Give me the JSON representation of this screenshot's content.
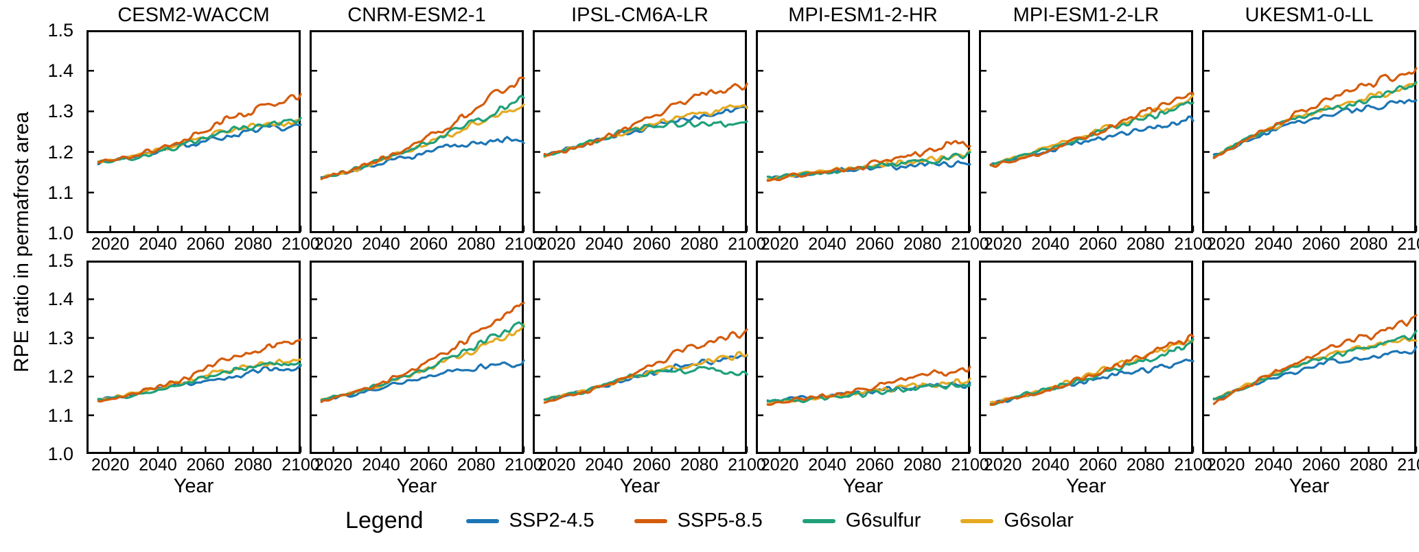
{
  "figure": {
    "ylabel": "RPE ratio in permafrost area",
    "xlabel": "Year"
  },
  "legend": {
    "title": "Legend",
    "items": [
      {
        "label": "SSP2-4.5",
        "color": "#1c75b4"
      },
      {
        "label": "SSP5-8.5",
        "color": "#d45c0c"
      },
      {
        "label": "G6sulfur",
        "color": "#1fa07a"
      },
      {
        "label": "G6solar",
        "color": "#e5a922"
      }
    ]
  },
  "chart_data": {
    "type": "line",
    "title": "",
    "xlabel": "Year",
    "ylabel": "RPE ratio in permafrost area",
    "layout": {
      "rows": 2,
      "cols": 6,
      "x_range": [
        2010,
        2100
      ],
      "y_range": [
        1.0,
        1.5
      ],
      "x_ticks_labeled": [
        2020,
        2040,
        2060,
        2080,
        2100
      ],
      "x_tick_minor_step": 10,
      "y_ticks": [
        1.5,
        1.4,
        1.3,
        1.2,
        1.1,
        1.0
      ],
      "grid": false,
      "legend_position": "bottom"
    },
    "models": [
      "CESM2-WACCM",
      "CNRM-ESM2-1",
      "IPSL-CM6A-LR",
      "MPI-ESM1-2-HR",
      "MPI-ESM1-2-LR",
      "UKESM1-0-LL"
    ],
    "series_names": [
      "SSP2-4.5",
      "SSP5-8.5",
      "G6sulfur",
      "G6solar"
    ],
    "series_colors": {
      "SSP2-4.5": "#1c75b4",
      "SSP5-8.5": "#d45c0c",
      "G6sulfur": "#1fa07a",
      "G6solar": "#e5a922"
    },
    "keypoint_years": [
      2015,
      2030,
      2050,
      2070,
      2085,
      2100
    ],
    "panels": [
      {
        "model": "CESM2-WACCM",
        "row": 1,
        "series": {
          "SSP2-4.5": [
            1.175,
            1.19,
            1.215,
            1.24,
            1.255,
            1.26
          ],
          "SSP5-8.5": [
            1.175,
            1.19,
            1.225,
            1.285,
            1.31,
            1.335
          ],
          "G6sulfur": [
            1.175,
            1.185,
            1.215,
            1.25,
            1.265,
            1.275
          ],
          "G6solar": [
            1.175,
            1.19,
            1.22,
            1.255,
            1.27,
            1.28
          ]
        }
      },
      {
        "model": "CNRM-ESM2-1",
        "row": 1,
        "series": {
          "SSP2-4.5": [
            1.135,
            1.155,
            1.185,
            1.215,
            1.225,
            1.23
          ],
          "SSP5-8.5": [
            1.135,
            1.16,
            1.205,
            1.27,
            1.33,
            1.385
          ],
          "G6sulfur": [
            1.135,
            1.16,
            1.2,
            1.25,
            1.29,
            1.335
          ],
          "G6solar": [
            1.135,
            1.158,
            1.2,
            1.245,
            1.285,
            1.32
          ]
        }
      },
      {
        "model": "IPSL-CM6A-LR",
        "row": 1,
        "series": {
          "SSP2-4.5": [
            1.19,
            1.215,
            1.25,
            1.275,
            1.29,
            1.31
          ],
          "SSP5-8.5": [
            1.19,
            1.21,
            1.26,
            1.315,
            1.345,
            1.365
          ],
          "G6sulfur": [
            1.19,
            1.215,
            1.255,
            1.27,
            1.27,
            1.265
          ],
          "G6solar": [
            1.19,
            1.215,
            1.25,
            1.285,
            1.3,
            1.315
          ]
        }
      },
      {
        "model": "MPI-ESM1-2-HR",
        "row": 1,
        "series": {
          "SSP2-4.5": [
            1.135,
            1.145,
            1.155,
            1.165,
            1.17,
            1.175
          ],
          "SSP5-8.5": [
            1.13,
            1.145,
            1.16,
            1.185,
            1.21,
            1.225
          ],
          "G6sulfur": [
            1.135,
            1.145,
            1.155,
            1.17,
            1.18,
            1.19
          ],
          "G6solar": [
            1.135,
            1.147,
            1.158,
            1.172,
            1.185,
            1.195
          ]
        }
      },
      {
        "model": "MPI-ESM1-2-LR",
        "row": 1,
        "series": {
          "SSP2-4.5": [
            1.17,
            1.19,
            1.22,
            1.245,
            1.26,
            1.285
          ],
          "SSP5-8.5": [
            1.165,
            1.185,
            1.23,
            1.275,
            1.31,
            1.34
          ],
          "G6sulfur": [
            1.17,
            1.195,
            1.225,
            1.27,
            1.29,
            1.325
          ],
          "G6solar": [
            1.17,
            1.195,
            1.23,
            1.275,
            1.3,
            1.33
          ]
        }
      },
      {
        "model": "UKESM1-0-LL",
        "row": 1,
        "series": {
          "SSP2-4.5": [
            1.19,
            1.23,
            1.275,
            1.3,
            1.315,
            1.33
          ],
          "SSP5-8.5": [
            1.185,
            1.235,
            1.295,
            1.345,
            1.375,
            1.395
          ],
          "G6sulfur": [
            1.19,
            1.235,
            1.285,
            1.315,
            1.34,
            1.365
          ],
          "G6solar": [
            1.19,
            1.235,
            1.285,
            1.32,
            1.34,
            1.36
          ]
        }
      },
      {
        "model": "CESM2-WACCM",
        "row": 2,
        "series": {
          "SSP2-4.5": [
            1.14,
            1.155,
            1.18,
            1.2,
            1.215,
            1.22
          ],
          "SSP5-8.5": [
            1.135,
            1.155,
            1.19,
            1.25,
            1.275,
            1.3
          ],
          "G6sulfur": [
            1.14,
            1.15,
            1.18,
            1.215,
            1.23,
            1.24
          ],
          "G6solar": [
            1.14,
            1.155,
            1.185,
            1.22,
            1.235,
            1.245
          ]
        }
      },
      {
        "model": "CNRM-ESM2-1",
        "row": 2,
        "series": {
          "SSP2-4.5": [
            1.14,
            1.155,
            1.185,
            1.215,
            1.23,
            1.235
          ],
          "SSP5-8.5": [
            1.135,
            1.16,
            1.205,
            1.27,
            1.33,
            1.39
          ],
          "G6sulfur": [
            1.14,
            1.16,
            1.2,
            1.25,
            1.295,
            1.34
          ],
          "G6solar": [
            1.14,
            1.158,
            1.2,
            1.245,
            1.285,
            1.325
          ]
        }
      },
      {
        "model": "IPSL-CM6A-LR",
        "row": 2,
        "series": {
          "SSP2-4.5": [
            1.14,
            1.16,
            1.195,
            1.225,
            1.24,
            1.255
          ],
          "SSP5-8.5": [
            1.135,
            1.155,
            1.2,
            1.26,
            1.29,
            1.31
          ],
          "G6sulfur": [
            1.14,
            1.16,
            1.2,
            1.215,
            1.215,
            1.205
          ],
          "G6solar": [
            1.14,
            1.16,
            1.195,
            1.225,
            1.24,
            1.26
          ]
        }
      },
      {
        "model": "MPI-ESM1-2-HR",
        "row": 2,
        "series": {
          "SSP2-4.5": [
            1.135,
            1.145,
            1.155,
            1.17,
            1.175,
            1.18
          ],
          "SSP5-8.5": [
            1.13,
            1.145,
            1.16,
            1.19,
            1.21,
            1.22
          ],
          "G6sulfur": [
            1.135,
            1.14,
            1.15,
            1.165,
            1.175,
            1.185
          ],
          "G6solar": [
            1.13,
            1.14,
            1.155,
            1.17,
            1.18,
            1.19
          ]
        }
      },
      {
        "model": "MPI-ESM1-2-LR",
        "row": 2,
        "series": {
          "SSP2-4.5": [
            1.13,
            1.15,
            1.18,
            1.21,
            1.22,
            1.245
          ],
          "SSP5-8.5": [
            1.13,
            1.15,
            1.19,
            1.235,
            1.27,
            1.3
          ],
          "G6sulfur": [
            1.13,
            1.155,
            1.185,
            1.225,
            1.25,
            1.29
          ],
          "G6solar": [
            1.13,
            1.155,
            1.19,
            1.235,
            1.26,
            1.295
          ]
        }
      },
      {
        "model": "UKESM1-0-LL",
        "row": 2,
        "series": {
          "SSP2-4.5": [
            1.14,
            1.175,
            1.215,
            1.245,
            1.255,
            1.27
          ],
          "SSP5-8.5": [
            1.135,
            1.18,
            1.235,
            1.29,
            1.315,
            1.345
          ],
          "G6sulfur": [
            1.14,
            1.18,
            1.23,
            1.26,
            1.285,
            1.31
          ],
          "G6solar": [
            1.14,
            1.18,
            1.23,
            1.265,
            1.285,
            1.305
          ]
        }
      }
    ]
  }
}
